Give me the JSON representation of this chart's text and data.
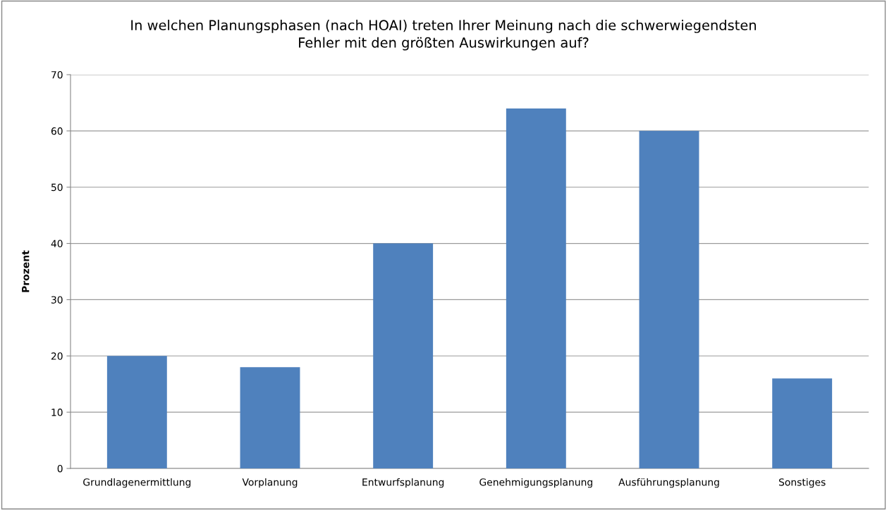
{
  "chart_data": {
    "type": "bar",
    "title": "In welchen Planungsphasen (nach HOAI) treten Ihrer Meinung nach die schwerwiegendsten\nFehler mit den größten Auswirkungen auf?",
    "ylabel": "Prozent",
    "categories": [
      "Grundlagenermittlung",
      "Vorplanung",
      "Entwurfsplanung",
      "Genehmigungsplanung",
      "Ausführungsplanung",
      "Sonstiges"
    ],
    "values": [
      20,
      18,
      40,
      64,
      60,
      16
    ],
    "color": "#4f81bd",
    "ylim": [
      0,
      70
    ],
    "yticks": [
      0,
      10,
      20,
      30,
      40,
      50,
      60,
      70
    ],
    "grid": "y",
    "legend": false
  }
}
